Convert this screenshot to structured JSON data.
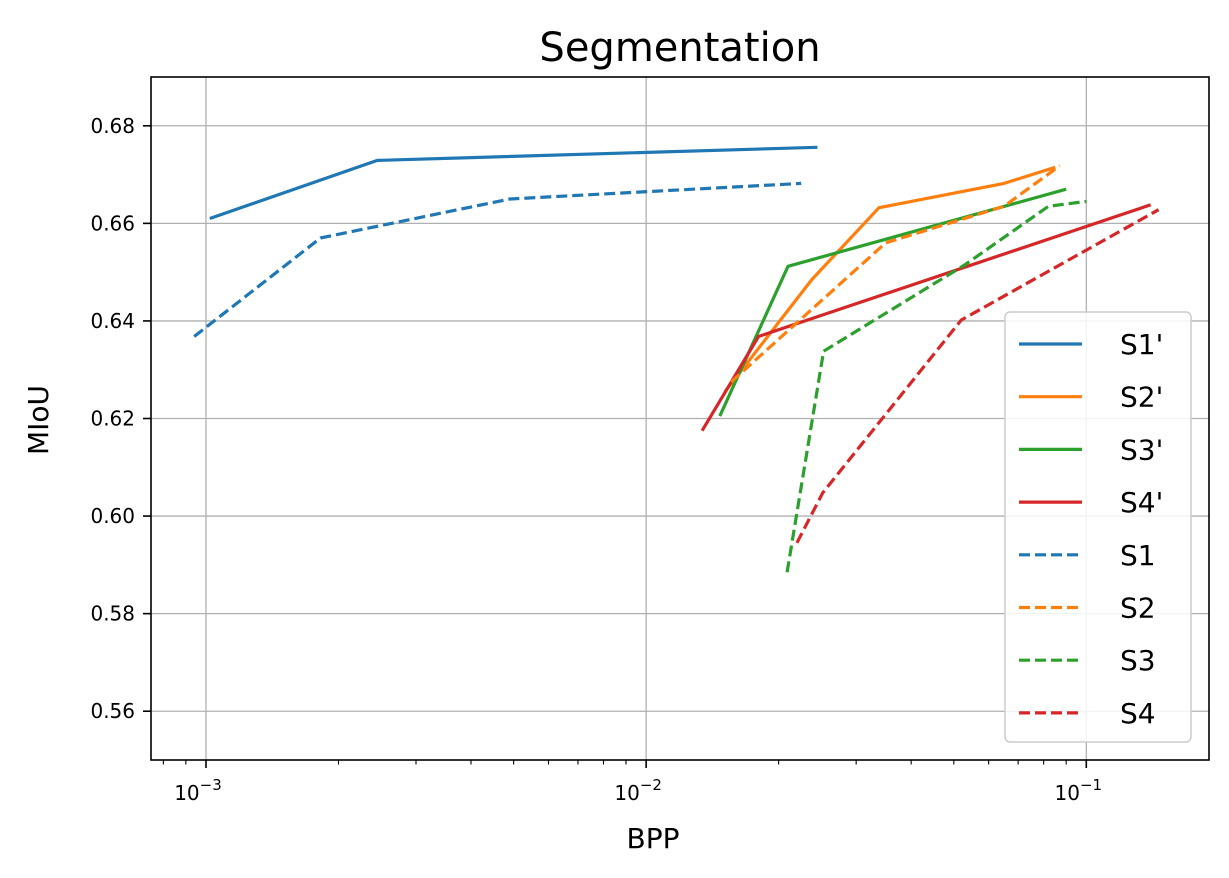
{
  "chart_data": {
    "type": "line",
    "title": "Segmentation",
    "xlabel": "BPP",
    "ylabel": "MIoU",
    "xscale": "log",
    "xlim": [
      0.00075,
      0.19
    ],
    "ylim": [
      0.55,
      0.69
    ],
    "grid": true,
    "legend_position": "bottom-right",
    "x_ticks": [
      {
        "value": 0.001,
        "base": "10",
        "exp": "−3"
      },
      {
        "value": 0.01,
        "base": "10",
        "exp": "−2"
      },
      {
        "value": 0.1,
        "base": "10",
        "exp": "−1"
      }
    ],
    "y_ticks": [
      {
        "value": 0.56,
        "label": "0.56"
      },
      {
        "value": 0.58,
        "label": "0.58"
      },
      {
        "value": 0.6,
        "label": "0.60"
      },
      {
        "value": 0.62,
        "label": "0.62"
      },
      {
        "value": 0.64,
        "label": "0.64"
      },
      {
        "value": 0.66,
        "label": "0.66"
      },
      {
        "value": 0.68,
        "label": "0.68"
      }
    ],
    "series": [
      {
        "name": "S1'",
        "color": "#1f77b4",
        "dash": "solid",
        "x": [
          0.00102,
          0.00245,
          0.0245
        ],
        "y": [
          0.661,
          0.6729,
          0.6756
        ]
      },
      {
        "name": "S2'",
        "color": "#ff7f0e",
        "dash": "solid",
        "x": [
          0.0151,
          0.0238,
          0.0338,
          0.065,
          0.085
        ],
        "y": [
          0.6255,
          0.6485,
          0.6632,
          0.6682,
          0.6715
        ]
      },
      {
        "name": "S3'",
        "color": "#2ca02c",
        "dash": "solid",
        "x": [
          0.0147,
          0.021,
          0.09
        ],
        "y": [
          0.6205,
          0.6512,
          0.667
        ]
      },
      {
        "name": "S4'",
        "color": "#d62728",
        "dash": "solid",
        "x": [
          0.0134,
          0.018,
          0.14
        ],
        "y": [
          0.6175,
          0.6368,
          0.6638
        ]
      },
      {
        "name": "S1",
        "color": "#1f77b4",
        "dash": "dashed",
        "x": [
          0.00094,
          0.00182,
          0.0049,
          0.0225
        ],
        "y": [
          0.6368,
          0.657,
          0.665,
          0.6682
        ]
      },
      {
        "name": "S2",
        "color": "#ff7f0e",
        "dash": "dashed",
        "x": [
          0.0156,
          0.035,
          0.065,
          0.087
        ],
        "y": [
          0.6275,
          0.656,
          0.6635,
          0.6718
        ]
      },
      {
        "name": "S3",
        "color": "#2ca02c",
        "dash": "dashed",
        "x": [
          0.0209,
          0.0253,
          0.053,
          0.082,
          0.1
        ],
        "y": [
          0.5885,
          0.6338,
          0.6515,
          0.6635,
          0.6645
        ]
      },
      {
        "name": "S4",
        "color": "#d62728",
        "dash": "dashed",
        "x": [
          0.022,
          0.0252,
          0.052,
          0.146
        ],
        "y": [
          0.5945,
          0.6048,
          0.6402,
          0.6628
        ]
      }
    ]
  }
}
